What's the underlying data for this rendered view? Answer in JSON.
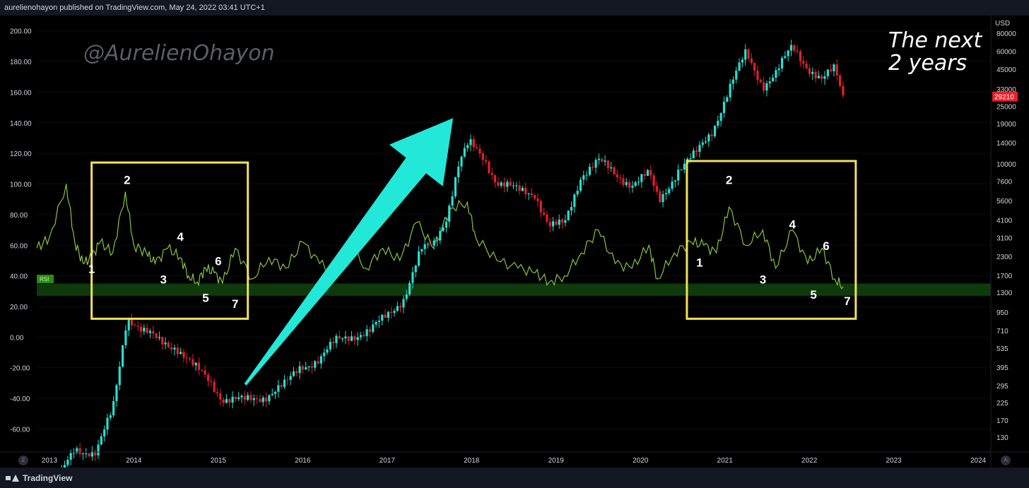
{
  "header": {
    "publisher_line": "aurelienohayon published on TradingView.com, May 24, 2022 03:41 UTC+1"
  },
  "footer": {
    "brand": "TradingView",
    "zoom_button": "Z",
    "auto_button": "A"
  },
  "watermark": "@AurelienOhayon",
  "annotation": {
    "line1": "The next",
    "line2": "2 years"
  },
  "colors": {
    "up": "#26e0d0",
    "down": "#e0202a",
    "rsi": "#86c440",
    "rsi_band": "#0e3a0c",
    "box": "#f2e05a",
    "arrow": "#22e8d8",
    "price_tag": "#e5212b"
  },
  "chart_data": {
    "type": "line",
    "x_axis": {
      "range": [
        2012.85,
        2024.15
      ],
      "ticks": [
        "2013",
        "2014",
        "2015",
        "2016",
        "2017",
        "2018",
        "2019",
        "2020",
        "2021",
        "2022",
        "2023",
        "2024"
      ]
    },
    "left_axis": {
      "range": [
        -75,
        210
      ],
      "ticks": [
        "200.00",
        "180.00",
        "160.00",
        "140.00",
        "120.00",
        "100.00",
        "80.00",
        "60.00",
        "40.00",
        "20.00",
        "0.00",
        "-20.00",
        "-40.00",
        "-60.00"
      ],
      "rsi_tag": "RSI"
    },
    "right_axis": {
      "unit": "USD",
      "scale": "log",
      "ticks": [
        "80000",
        "60000",
        "45000",
        "33000",
        "25000",
        "19000",
        "14000",
        "10000",
        "7600",
        "5600",
        "4100",
        "3100",
        "2300",
        "1700",
        "1300",
        "950",
        "710",
        "535",
        "395",
        "295",
        "225",
        "170",
        "130"
      ],
      "last_price": "29210",
      "last_price_value": 29210
    },
    "series": [
      {
        "kind": "candles",
        "x": [
          2013.0,
          2013.3,
          2013.55,
          2013.75,
          2013.92,
          2014.1,
          2014.3,
          2014.5,
          2014.7,
          2014.9,
          2015.05,
          2015.3,
          2015.55,
          2015.8,
          2015.98,
          2016.2,
          2016.4,
          2016.55,
          2016.8,
          2017.0,
          2017.2,
          2017.4,
          2017.55,
          2017.7,
          2017.85,
          2017.97,
          2018.15,
          2018.3,
          2018.55,
          2018.75,
          2018.92,
          2019.1,
          2019.3,
          2019.5,
          2019.7,
          2019.9,
          2020.1,
          2020.22,
          2020.45,
          2020.65,
          2020.85,
          2021.05,
          2021.25,
          2021.45,
          2021.6,
          2021.8,
          2021.98,
          2022.15,
          2022.3,
          2022.4
        ],
        "values": [
          50,
          110,
          100,
          200,
          900,
          700,
          600,
          550,
          400,
          320,
          240,
          230,
          250,
          300,
          400,
          450,
          600,
          650,
          700,
          900,
          1200,
          2500,
          2800,
          4300,
          10000,
          13800,
          11000,
          7500,
          6500,
          6300,
          3700,
          3800,
          8500,
          10500,
          8400,
          7300,
          8500,
          5500,
          9200,
          11500,
          17000,
          33000,
          58000,
          35000,
          42000,
          64000,
          47000,
          38000,
          45000,
          29210
        ]
      },
      {
        "kind": "rsi",
        "x": [
          2012.85,
          2013.0,
          2013.2,
          2013.3,
          2013.4,
          2013.5,
          2013.6,
          2013.75,
          2013.9,
          2014.0,
          2014.15,
          2014.25,
          2014.4,
          2014.55,
          2014.65,
          2014.75,
          2014.85,
          2014.95,
          2015.05,
          2015.2,
          2015.4,
          2015.6,
          2015.8,
          2016.0,
          2016.2,
          2016.4,
          2016.55,
          2016.75,
          2016.95,
          2017.15,
          2017.35,
          2017.55,
          2017.75,
          2017.95,
          2018.05,
          2018.3,
          2018.55,
          2018.75,
          2018.92,
          2019.1,
          2019.3,
          2019.5,
          2019.7,
          2019.9,
          2020.1,
          2020.2,
          2020.4,
          2020.6,
          2020.75,
          2020.9,
          2021.05,
          2021.25,
          2021.45,
          2021.6,
          2021.8,
          2021.98,
          2022.15,
          2022.3,
          2022.4
        ],
        "values": [
          58,
          65,
          100,
          62,
          48,
          52,
          62,
          55,
          95,
          60,
          55,
          48,
          58,
          52,
          40,
          36,
          45,
          42,
          35,
          58,
          38,
          52,
          45,
          62,
          48,
          40,
          60,
          45,
          58,
          50,
          75,
          58,
          84,
          88,
          65,
          50,
          45,
          42,
          36,
          40,
          55,
          70,
          48,
          45,
          60,
          38,
          55,
          62,
          60,
          55,
          85,
          60,
          70,
          45,
          70,
          48,
          58,
          38,
          33
        ]
      }
    ],
    "annotations": [
      {
        "label": "1",
        "x": 2013.5,
        "y": 42
      },
      {
        "label": "2",
        "x": 2013.92,
        "y": 100
      },
      {
        "label": "3",
        "x": 2014.35,
        "y": 35
      },
      {
        "label": "4",
        "x": 2014.55,
        "y": 63
      },
      {
        "label": "5",
        "x": 2014.85,
        "y": 23
      },
      {
        "label": "6",
        "x": 2015.0,
        "y": 47
      },
      {
        "label": "7",
        "x": 2015.2,
        "y": 19
      },
      {
        "label": "1",
        "x": 2020.7,
        "y": 46
      },
      {
        "label": "2",
        "x": 2021.05,
        "y": 100
      },
      {
        "label": "3",
        "x": 2021.45,
        "y": 35
      },
      {
        "label": "4",
        "x": 2021.8,
        "y": 71
      },
      {
        "label": "5",
        "x": 2022.05,
        "y": 25
      },
      {
        "label": "6",
        "x": 2022.2,
        "y": 57
      },
      {
        "label": "7",
        "x": 2022.45,
        "y": 21
      }
    ],
    "rsi_band": [
      27,
      35
    ],
    "boxes": [
      {
        "x": [
          2013.5,
          2015.35
        ],
        "y": [
          12,
          114
        ]
      },
      {
        "x": [
          2020.55,
          2022.55
        ],
        "y": [
          12,
          115
        ]
      }
    ]
  }
}
